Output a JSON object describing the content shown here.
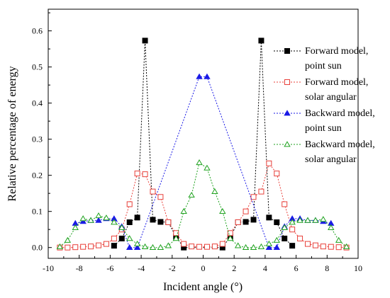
{
  "chart_data": {
    "type": "line",
    "title": "",
    "xlabel": "Incident angle (°)",
    "ylabel": "Relative percentage of energy",
    "xlim": [
      -10,
      10
    ],
    "ylim": [
      -0.03,
      0.66
    ],
    "xticks": [
      -10,
      -8,
      -6,
      -4,
      -2,
      0,
      2,
      4,
      6,
      8,
      10
    ],
    "yticks": [
      0.0,
      0.1,
      0.2,
      0.3,
      0.4,
      0.5,
      0.6
    ],
    "xtick_labels": [
      "-10",
      "-8",
      "-6",
      "-4",
      "-2",
      "0",
      "2",
      "4",
      "6",
      "8",
      "10"
    ],
    "ytick_labels": [
      "0.0",
      "0.1",
      "0.2",
      "0.3",
      "0.4",
      "0.5",
      "0.6"
    ],
    "grid": false,
    "legend_position": "top-right",
    "series": [
      {
        "name": "Forward model, point sun",
        "legend_lines": [
          "Forward model,",
          "point sun"
        ],
        "color": "#000000",
        "marker": "filled-square",
        "x": [
          -5.75,
          -5.25,
          -4.75,
          -4.25,
          -3.75,
          -3.25,
          -2.75,
          -2.25,
          -1.75,
          -1.25,
          1.25,
          1.75,
          2.25,
          2.75,
          3.25,
          3.75,
          4.25,
          4.75,
          5.25,
          5.75
        ],
        "y": [
          0.005,
          0.025,
          0.07,
          0.083,
          0.573,
          0.077,
          0.071,
          0.07,
          0.03,
          0.0,
          0.0,
          0.03,
          0.07,
          0.071,
          0.077,
          0.573,
          0.083,
          0.07,
          0.025,
          0.005
        ]
      },
      {
        "name": "Forward model, solar angular",
        "legend_lines": [
          "Forward model,",
          "solar angular"
        ],
        "color": "#e8403a",
        "marker": "open-square",
        "x": [
          -9.25,
          -8.75,
          -8.25,
          -7.75,
          -7.25,
          -6.75,
          -6.25,
          -5.75,
          -5.25,
          -4.75,
          -4.25,
          -3.75,
          -3.25,
          -2.75,
          -2.25,
          -1.75,
          -1.25,
          -0.75,
          -0.25,
          0.25,
          0.75,
          1.25,
          1.75,
          2.25,
          2.75,
          3.25,
          3.75,
          4.25,
          4.75,
          5.25,
          5.75,
          6.25,
          6.75,
          7.25,
          7.75,
          8.25,
          8.75,
          9.25
        ],
        "y": [
          0.0,
          0.0,
          0.001,
          0.002,
          0.003,
          0.006,
          0.01,
          0.025,
          0.05,
          0.12,
          0.205,
          0.203,
          0.155,
          0.14,
          0.07,
          0.04,
          0.01,
          0.003,
          0.002,
          0.002,
          0.003,
          0.01,
          0.04,
          0.07,
          0.1,
          0.14,
          0.155,
          0.233,
          0.205,
          0.12,
          0.05,
          0.025,
          0.01,
          0.006,
          0.003,
          0.002,
          0.001,
          0.0
        ]
      },
      {
        "name": "Backward model, point sun",
        "legend_lines": [
          "Backward model,",
          "point sun"
        ],
        "color": "#1a1ae6",
        "marker": "filled-triangle",
        "x": [
          -8.25,
          -7.75,
          -7.25,
          -6.75,
          -6.25,
          -5.75,
          -5.25,
          -4.75,
          -4.25,
          -0.25,
          0.25,
          4.25,
          4.75,
          5.25,
          5.75,
          6.25,
          6.75,
          7.25,
          7.75,
          8.25
        ],
        "y": [
          0.067,
          0.072,
          0.075,
          0.075,
          0.08,
          0.08,
          0.058,
          0.0,
          0.0,
          0.473,
          0.473,
          0.0,
          0.0,
          0.058,
          0.08,
          0.08,
          0.075,
          0.075,
          0.072,
          0.067
        ]
      },
      {
        "name": "Backward model, solar angular",
        "legend_lines": [
          "Backward model,",
          "solar angular"
        ],
        "color": "#1fa21f",
        "marker": "open-triangle",
        "x": [
          -9.25,
          -8.75,
          -8.25,
          -7.75,
          -7.25,
          -6.75,
          -6.25,
          -5.75,
          -5.25,
          -4.75,
          -4.25,
          -3.75,
          -3.25,
          -2.75,
          -2.25,
          -1.75,
          -1.25,
          -0.75,
          -0.25,
          0.25,
          0.75,
          1.25,
          1.75,
          2.25,
          2.75,
          3.25,
          3.75,
          4.25,
          4.75,
          5.25,
          5.75,
          6.25,
          6.75,
          7.25,
          7.75,
          8.25,
          8.75,
          9.25
        ],
        "y": [
          0.002,
          0.02,
          0.055,
          0.08,
          0.075,
          0.088,
          0.082,
          0.07,
          0.055,
          0.025,
          0.01,
          0.002,
          0.0,
          0.0,
          0.005,
          0.025,
          0.1,
          0.145,
          0.235,
          0.22,
          0.155,
          0.1,
          0.025,
          0.005,
          0.0,
          0.0,
          0.002,
          0.01,
          0.02,
          0.055,
          0.07,
          0.075,
          0.075,
          0.075,
          0.078,
          0.055,
          0.02,
          0.002
        ]
      }
    ]
  }
}
